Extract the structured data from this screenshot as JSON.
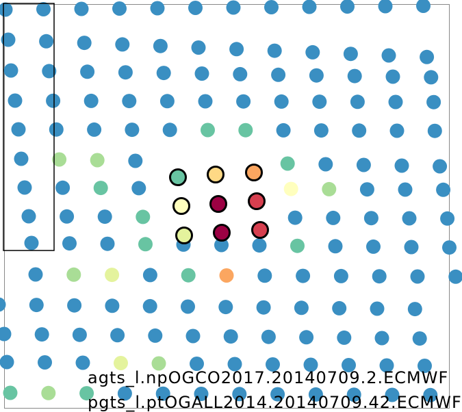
{
  "colors": {
    "default_point": "#3a8fc2",
    "light_green": "#a9dd96",
    "teal": "#68c4a2",
    "pale_yellow": "#ffffbe",
    "yellow_green": "#e4f39d",
    "orange": "#fba660",
    "light_orange": "#fed985",
    "red": "#d63f4f",
    "dark_red": "#9c0143"
  },
  "captions": [
    "agts_l.npOGCO2017.20140709.2.ECMWF",
    "pgts_l.ptOGALL2014.20140709.42.ECMWF"
  ]
}
